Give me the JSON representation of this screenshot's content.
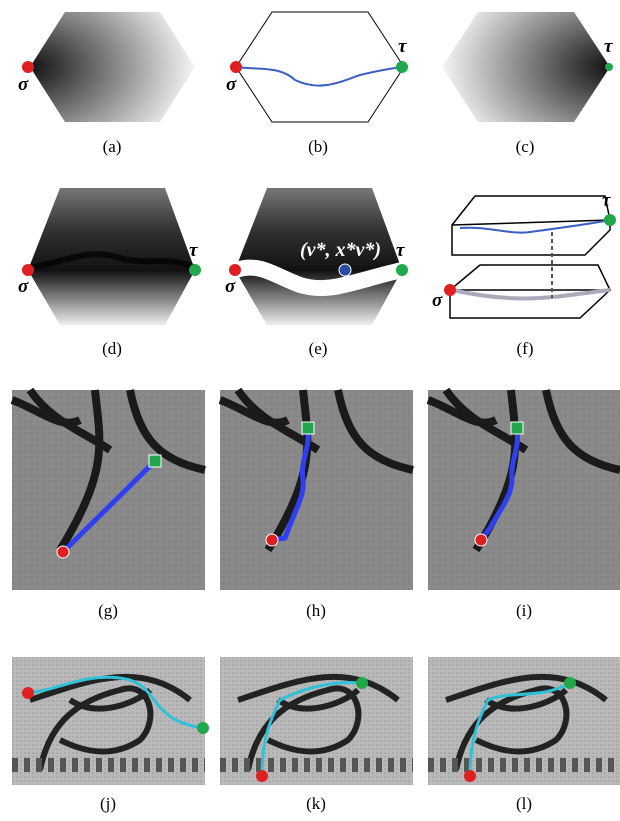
{
  "panels": [
    {
      "label": "(a)",
      "source": "σ"
    },
    {
      "label": "(b)",
      "source": "σ",
      "target": "τ"
    },
    {
      "label": "(c)",
      "target": "τ"
    },
    {
      "label": "(d)",
      "source": "σ",
      "target": "τ"
    },
    {
      "label": "(e)",
      "source": "σ",
      "target": "τ",
      "point": "(ν*, x*ν*)"
    },
    {
      "label": "(f)",
      "source": "σ",
      "target": "τ"
    },
    {
      "label": "(g)"
    },
    {
      "label": "(h)"
    },
    {
      "label": "(i)"
    },
    {
      "label": "(j)"
    },
    {
      "label": "(k)"
    },
    {
      "label": "(l)"
    }
  ]
}
